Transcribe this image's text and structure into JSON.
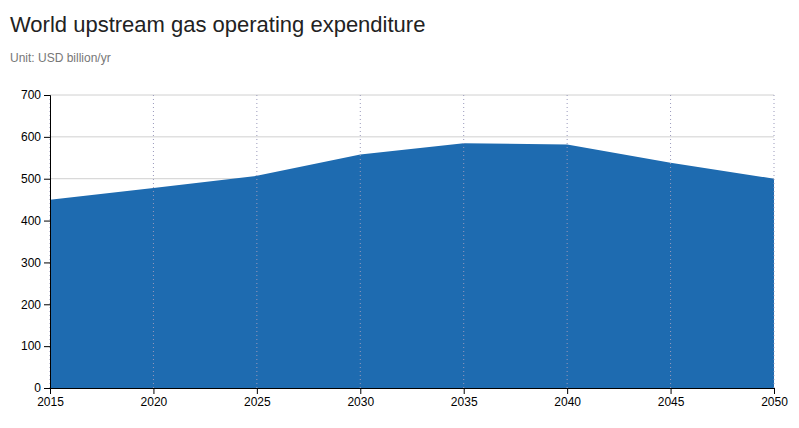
{
  "chart_data": {
    "type": "area",
    "title": "World upstream gas operating expenditure",
    "subtitle": "Unit: USD billion/yr",
    "x": [
      2015,
      2020,
      2025,
      2030,
      2035,
      2040,
      2045,
      2050
    ],
    "values": [
      450,
      478,
      507,
      558,
      585,
      582,
      538,
      500
    ],
    "color": "#1e6bb0",
    "xlim": [
      2015,
      2050
    ],
    "xticks": [
      2015,
      2020,
      2025,
      2030,
      2035,
      2040,
      2045,
      2050
    ],
    "ylim": [
      0,
      700
    ],
    "yticks": [
      0,
      100,
      200,
      300,
      400,
      500,
      600,
      700
    ],
    "grid": true
  }
}
